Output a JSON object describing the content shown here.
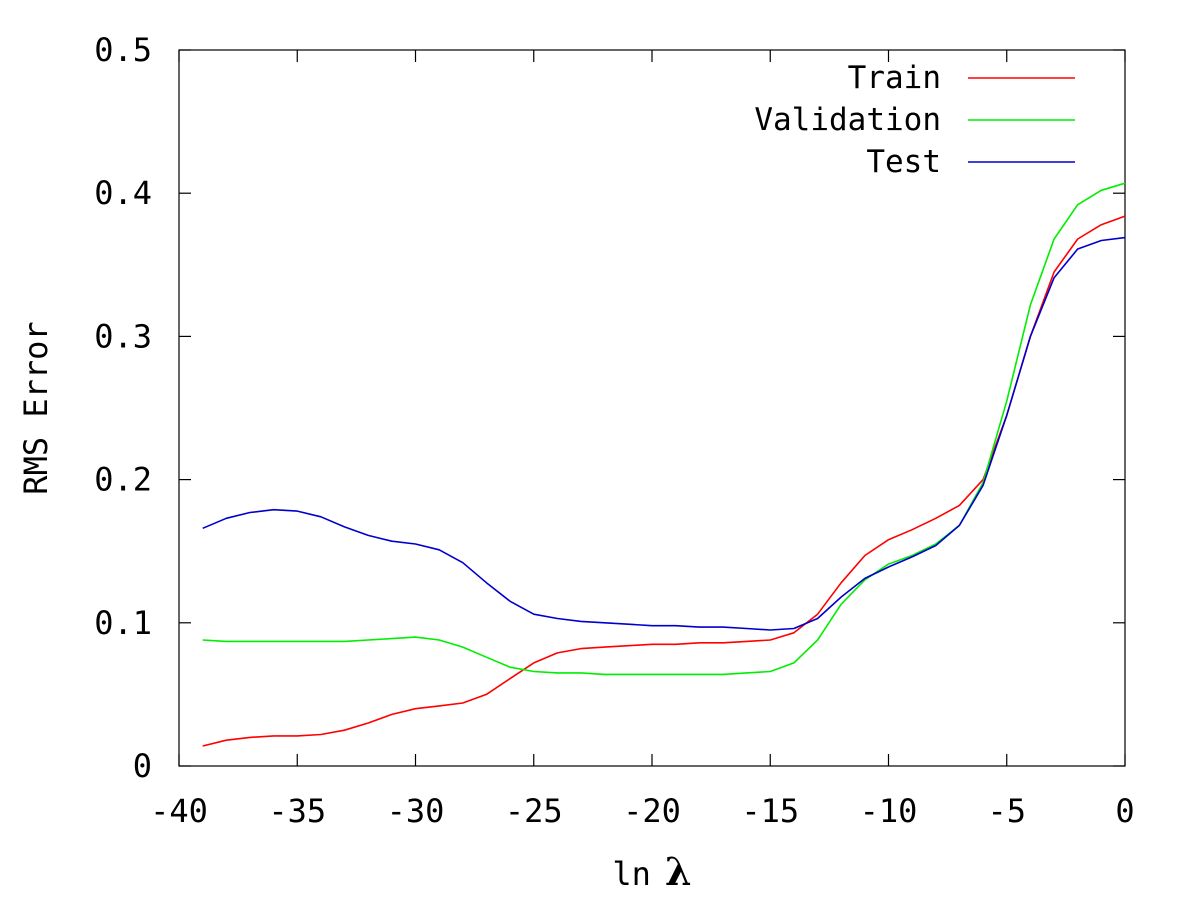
{
  "chart_data": {
    "type": "line",
    "title": "",
    "xlabel_prefix": "ln",
    "xlabel_symbol": "λ",
    "ylabel": "RMS Error",
    "xlim": [
      -40,
      0
    ],
    "ylim": [
      0,
      0.5
    ],
    "xticks": [
      "-40",
      "-35",
      "-30",
      "-25",
      "-20",
      "-15",
      "-10",
      "-5",
      "0"
    ],
    "yticks": [
      "0",
      "0.1",
      "0.2",
      "0.3",
      "0.4",
      "0.5"
    ],
    "legend_position": "top-right",
    "grid": false,
    "x": [
      -39,
      -38,
      -37,
      -36,
      -35,
      -34,
      -33,
      -32,
      -31,
      -30,
      -29,
      -28,
      -27,
      -26,
      -25,
      -24,
      -23,
      -22,
      -21,
      -20,
      -19,
      -18,
      -17,
      -16,
      -15,
      -14,
      -13,
      -12,
      -11,
      -10,
      -9,
      -8,
      -7,
      -6,
      -5,
      -4,
      -3,
      -2,
      -1,
      0
    ],
    "series": [
      {
        "name": "Train",
        "color": "#ff0000",
        "values": [
          0.014,
          0.018,
          0.02,
          0.021,
          0.021,
          0.022,
          0.025,
          0.03,
          0.036,
          0.04,
          0.042,
          0.044,
          0.05,
          0.061,
          0.072,
          0.079,
          0.082,
          0.083,
          0.084,
          0.085,
          0.085,
          0.086,
          0.086,
          0.087,
          0.088,
          0.093,
          0.106,
          0.128,
          0.147,
          0.158,
          0.165,
          0.173,
          0.182,
          0.2,
          0.245,
          0.3,
          0.345,
          0.368,
          0.378,
          0.384
        ]
      },
      {
        "name": "Validation",
        "color": "#00ee00",
        "values": [
          0.088,
          0.087,
          0.087,
          0.087,
          0.087,
          0.087,
          0.087,
          0.088,
          0.089,
          0.09,
          0.088,
          0.083,
          0.076,
          0.069,
          0.066,
          0.065,
          0.065,
          0.064,
          0.064,
          0.064,
          0.064,
          0.064,
          0.064,
          0.065,
          0.066,
          0.072,
          0.088,
          0.113,
          0.13,
          0.141,
          0.147,
          0.155,
          0.168,
          0.198,
          0.255,
          0.322,
          0.368,
          0.392,
          0.402,
          0.407
        ]
      },
      {
        "name": "Test",
        "color": "#0000cc",
        "values": [
          0.166,
          0.173,
          0.177,
          0.179,
          0.178,
          0.174,
          0.167,
          0.161,
          0.157,
          0.155,
          0.151,
          0.142,
          0.128,
          0.115,
          0.106,
          0.103,
          0.101,
          0.1,
          0.099,
          0.098,
          0.098,
          0.097,
          0.097,
          0.096,
          0.095,
          0.096,
          0.103,
          0.118,
          0.131,
          0.139,
          0.146,
          0.154,
          0.168,
          0.196,
          0.245,
          0.3,
          0.341,
          0.361,
          0.367,
          0.369
        ]
      }
    ]
  }
}
